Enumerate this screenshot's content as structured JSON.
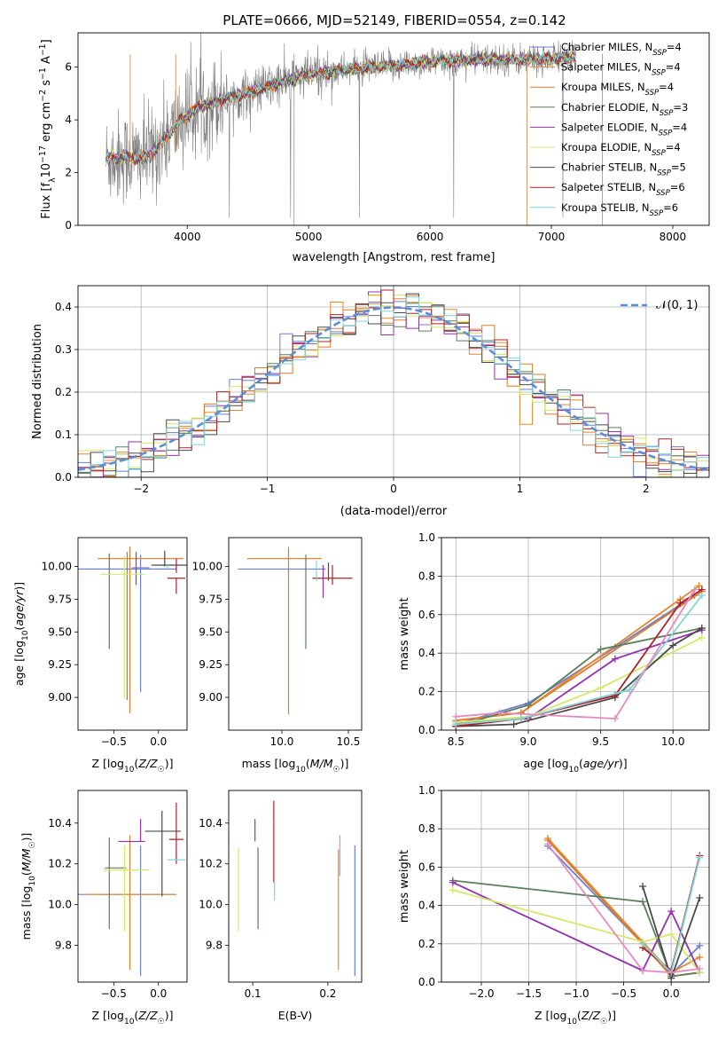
{
  "figure_title": "PLATE=0666, MJD=52149, FIBERID=0554, z=0.142",
  "models": [
    {
      "name": "Chabrier MILES",
      "nssp": "4",
      "color": "#6a7fd6"
    },
    {
      "name": "Salpeter MILES",
      "nssp": "4",
      "color": "#e8872c"
    },
    {
      "name": "Kroupa MILES",
      "nssp": "4",
      "color": "#e07b2a"
    },
    {
      "name": "Chabrier ELODIE",
      "nssp": "3",
      "color": "#5a7f5a"
    },
    {
      "name": "Salpeter ELODIE",
      "nssp": "4",
      "color": "#9531b0"
    },
    {
      "name": "Kroupa ELODIE",
      "nssp": "4",
      "color": "#d6e86a"
    },
    {
      "name": "Chabrier STELIB",
      "nssp": "5",
      "color": "#4a4a4a"
    },
    {
      "name": "Salpeter STELIB",
      "nssp": "6",
      "color": "#b0202a"
    },
    {
      "name": "Kroupa STELIB",
      "nssp": "6",
      "color": "#7fd6d6"
    }
  ],
  "legend_suffix": "SSP",
  "chart_data": [
    {
      "type": "line",
      "panel": "spectrum",
      "xlabel": "wavelength [Angstrom, rest frame]",
      "ylabel": "Flux [f_λ 10^-17 erg cm^-2 s^-1 A^-1]",
      "xlim": [
        3100,
        8300
      ],
      "ylim": [
        0,
        7.3
      ],
      "xticks": [
        4000,
        5000,
        6000,
        7000,
        8000
      ],
      "yticks": [
        0,
        2,
        4,
        6
      ],
      "data_color": "#808080",
      "model_continuum": {
        "x": [
          3330,
          3450,
          3600,
          3700,
          3800,
          3950,
          4100,
          4300,
          4500,
          4700,
          5000,
          5300,
          5600,
          6000,
          6500,
          7000,
          7200
        ],
        "y": [
          2.5,
          2.6,
          2.55,
          2.7,
          3.2,
          4.0,
          4.5,
          4.8,
          5.0,
          5.3,
          5.7,
          5.9,
          6.0,
          6.2,
          6.3,
          6.3,
          6.4
        ]
      },
      "legend_placement": "upper right"
    },
    {
      "type": "histogram",
      "panel": "residuals",
      "xlabel": "(data-model)/error",
      "ylabel": "Normed distribution",
      "xlim": [
        -2.5,
        2.5
      ],
      "ylim": [
        0,
        0.45
      ],
      "xticks": [
        -2,
        -1,
        0,
        1,
        2
      ],
      "yticks": [
        0.0,
        0.1,
        0.2,
        0.3,
        0.4
      ],
      "reference_curve": {
        "label": "𝒩(0, 1)",
        "mean": 0,
        "sigma": 1,
        "color": "#5b8ed6"
      },
      "bin_width": 0.1,
      "legend_placement": "upper right",
      "grid": true
    },
    {
      "type": "errorbar",
      "panel": "age_vs_Z",
      "xlabel": "Z [log10(Z/Z☉)]",
      "ylabel": "age  [log10(age/yr)]",
      "xlim": [
        -0.9,
        0.32
      ],
      "ylim": [
        8.75,
        10.22
      ],
      "xticks": [
        -0.5,
        0.0
      ],
      "yticks": [
        9.0,
        9.25,
        9.5,
        9.75,
        10.0
      ],
      "points": [
        {
          "x": -0.35,
          "xerr": 0.55,
          "y": 9.98,
          "yerr": [
            0.0,
            0.0
          ],
          "model": 0
        },
        {
          "x": -0.35,
          "xerr": 0.55,
          "y": 9.98,
          "yerr": [
            1.0,
            0.13
          ],
          "model": 0
        },
        {
          "x": -0.2,
          "xerr": 0.1,
          "y": 9.99,
          "yerr": [
            0.95,
            0.1
          ],
          "model": 0
        },
        {
          "x": -0.2,
          "xerr": 0.48,
          "y": 10.06,
          "yerr": [
            0.0,
            0.0
          ],
          "model": 1
        },
        {
          "x": -0.32,
          "xerr": 0.0,
          "y": 10.0,
          "yerr": [
            1.12,
            0.15
          ],
          "model": 2
        },
        {
          "x": -0.55,
          "xerr": 0.0,
          "y": 9.97,
          "yerr": [
            0.6,
            0.13
          ],
          "model": 3
        },
        {
          "x": -0.25,
          "xerr": 0.0,
          "y": 9.98,
          "yerr": [
            0.12,
            0.13
          ],
          "model": 4
        },
        {
          "x": -0.38,
          "xerr": 0.0,
          "y": 9.93,
          "yerr": [
            0.94,
            0.15
          ],
          "model": 5
        },
        {
          "x": -0.4,
          "xerr": 0.25,
          "y": 9.94,
          "yerr": [
            0.0,
            0.0
          ],
          "model": 5
        },
        {
          "x": 0.07,
          "xerr": 0.0,
          "y": 10.0,
          "yerr": [
            0.0,
            0.12
          ],
          "model": 6
        },
        {
          "x": 0.12,
          "xerr": 0.2,
          "y": 10.01,
          "yerr": [
            0.0,
            0.0
          ],
          "model": 6
        },
        {
          "x": 0.2,
          "xerr": 0.1,
          "y": 9.91,
          "yerr": [
            0.12,
            0.0
          ],
          "model": 7
        },
        {
          "x": 0.2,
          "xerr": 0.0,
          "y": 10.0,
          "yerr": [
            0.05,
            0.06
          ],
          "model": 7
        },
        {
          "x": 0.1,
          "xerr": 0.0,
          "y": 9.99,
          "yerr": [
            0.02,
            0.02
          ],
          "model": 8
        }
      ]
    },
    {
      "type": "errorbar",
      "panel": "age_vs_mass",
      "xlabel": "mass [log10(M/M☉)]",
      "ylabel": "",
      "xlim": [
        9.6,
        10.6
      ],
      "ylim": [
        8.75,
        10.22
      ],
      "xticks": [
        10.0,
        10.5
      ],
      "yticks": [
        9.0,
        9.25,
        9.5,
        9.75,
        10.0
      ],
      "points": [
        {
          "x": 10.0,
          "xerr": 0.33,
          "y": 9.98,
          "yerr": [
            0.0,
            0.0
          ],
          "model": 0
        },
        {
          "x": 10.02,
          "xerr": 0.28,
          "y": 10.06,
          "yerr": [
            0.0,
            0.0
          ],
          "model": 1
        },
        {
          "x": 10.05,
          "xerr": 0.0,
          "y": 9.99,
          "yerr": [
            1.12,
            0.16
          ],
          "model": 2
        },
        {
          "x": 10.18,
          "xerr": 0.0,
          "y": 9.97,
          "yerr": [
            0.6,
            0.12
          ],
          "model": 3
        },
        {
          "x": 10.31,
          "xerr": 0.0,
          "y": 9.96,
          "yerr": [
            0.2,
            0.05
          ],
          "model": 4
        },
        {
          "x": 10.23,
          "xerr": 0.0,
          "y": 9.94,
          "yerr": [
            0.0,
            0.0
          ],
          "model": 5
        },
        {
          "x": 10.35,
          "xerr": 0.0,
          "y": 9.99,
          "yerr": [
            0.1,
            0.04
          ],
          "model": 6
        },
        {
          "x": 10.38,
          "xerr": 0.15,
          "y": 9.91,
          "yerr": [
            0.05,
            0.1
          ],
          "model": 7
        },
        {
          "x": 10.26,
          "xerr": 0.0,
          "y": 9.99,
          "yerr": [
            0.1,
            0.05
          ],
          "model": 8
        }
      ]
    },
    {
      "type": "line",
      "panel": "massweight_vs_age",
      "xlabel": "age  [log10(age/yr)]",
      "ylabel": "mass weight",
      "xlim": [
        8.4,
        10.25
      ],
      "ylim": [
        0.0,
        1.0
      ],
      "xticks": [
        8.5,
        9.0,
        9.5,
        10.0
      ],
      "yticks": [
        0.0,
        0.2,
        0.4,
        0.6,
        0.8,
        1.0
      ],
      "grid": true,
      "series": [
        {
          "model": 0,
          "x": [
            8.5,
            9.0,
            9.6,
            10.15
          ],
          "y": [
            0.03,
            0.14,
            0.43,
            0.7
          ]
        },
        {
          "model": 1,
          "x": [
            8.5,
            8.95,
            10.05,
            10.18
          ],
          "y": [
            0.05,
            0.09,
            0.68,
            0.75
          ]
        },
        {
          "model": 2,
          "x": [
            8.5,
            8.95,
            10.2
          ],
          "y": [
            0.05,
            0.09,
            0.72
          ]
        },
        {
          "model": 3,
          "x": [
            8.5,
            9.0,
            9.5,
            10.2
          ],
          "y": [
            0.02,
            0.13,
            0.42,
            0.53
          ]
        },
        {
          "model": 4,
          "x": [
            8.5,
            9.0,
            9.6,
            10.2
          ],
          "y": [
            0.04,
            0.06,
            0.37,
            0.52
          ]
        },
        {
          "model": 5,
          "x": [
            8.5,
            9.0,
            9.5,
            10.2
          ],
          "y": [
            0.04,
            0.07,
            0.22,
            0.48
          ]
        },
        {
          "model": 6,
          "x": [
            8.5,
            8.9,
            9.6,
            10.0,
            10.2
          ],
          "y": [
            0.02,
            0.03,
            0.17,
            0.44,
            0.53
          ]
        },
        {
          "model": 7,
          "x": [
            8.5,
            8.95,
            9.6,
            10.05,
            10.2
          ],
          "y": [
            0.02,
            0.06,
            0.18,
            0.66,
            0.73
          ]
        },
        {
          "model": 8,
          "x": [
            8.5,
            8.95,
            9.7,
            10.2
          ],
          "y": [
            0.03,
            0.06,
            0.21,
            0.7
          ]
        },
        {
          "model": -1,
          "color": "#e38bc0",
          "x": [
            8.5,
            8.8,
            9.6,
            10.15
          ],
          "y": [
            0.07,
            0.09,
            0.06,
            0.73
          ]
        }
      ]
    },
    {
      "type": "errorbar",
      "panel": "mass_vs_Z",
      "xlabel": "Z [log10(Z/Z☉)]",
      "ylabel": "mass [log10(M/M☉)]",
      "xlim": [
        -0.9,
        0.32
      ],
      "ylim": [
        9.62,
        10.56
      ],
      "xticks": [
        -0.5,
        0.0
      ],
      "yticks": [
        9.8,
        10.0,
        10.2,
        10.4
      ],
      "points": [
        {
          "x": -0.35,
          "xerr": 0.55,
          "y": 10.05,
          "yerr": [
            0.0,
            0.0
          ],
          "model": 0
        },
        {
          "x": -0.2,
          "xerr": 0.0,
          "y": 10.05,
          "yerr": [
            0.4,
            0.24
          ],
          "model": 0
        },
        {
          "x": -0.3,
          "xerr": 0.5,
          "y": 10.05,
          "yerr": [
            0.0,
            0.0
          ],
          "model": 1
        },
        {
          "x": -0.32,
          "xerr": 0.0,
          "y": 10.05,
          "yerr": [
            0.37,
            0.29
          ],
          "model": 2
        },
        {
          "x": -0.55,
          "xerr": 0.0,
          "y": 10.18,
          "yerr": [
            0.3,
            0.15
          ],
          "model": 3
        },
        {
          "x": -0.48,
          "xerr": 0.12,
          "y": 10.18,
          "yerr": [
            0.0,
            0.0
          ],
          "model": 3
        },
        {
          "x": -0.3,
          "xerr": 0.15,
          "y": 10.31,
          "yerr": [
            0.0,
            0.0
          ],
          "model": 4
        },
        {
          "x": -0.2,
          "xerr": 0.0,
          "y": 10.31,
          "yerr": [
            0.0,
            0.11
          ],
          "model": 4
        },
        {
          "x": -0.38,
          "xerr": 0.0,
          "y": 10.17,
          "yerr": [
            0.3,
            0.12
          ],
          "model": 5
        },
        {
          "x": -0.35,
          "xerr": 0.25,
          "y": 10.17,
          "yerr": [
            0.0,
            0.0
          ],
          "model": 5
        },
        {
          "x": 0.04,
          "xerr": 0.0,
          "y": 10.36,
          "yerr": [
            0.32,
            0.1
          ],
          "model": 6
        },
        {
          "x": 0.05,
          "xerr": 0.2,
          "y": 10.36,
          "yerr": [
            0.0,
            0.0
          ],
          "model": 6
        },
        {
          "x": 0.2,
          "xerr": 0.08,
          "y": 10.32,
          "yerr": [
            0.12,
            0.18
          ],
          "model": 7
        },
        {
          "x": 0.2,
          "xerr": 0.1,
          "y": 10.22,
          "yerr": [
            0.0,
            0.0
          ],
          "model": 8
        }
      ]
    },
    {
      "type": "errorbar",
      "panel": "mass_vs_EBV",
      "xlabel": "E(B-V)",
      "ylabel": "",
      "xlim": [
        0.068,
        0.245
      ],
      "ylim": [
        9.62,
        10.56
      ],
      "xticks": [
        0.1,
        0.2
      ],
      "yticks": [
        9.8,
        10.0,
        10.2,
        10.4
      ],
      "points": [
        {
          "x": 0.236,
          "xerr": 0.0,
          "y": 10.05,
          "yerr": [
            0.4,
            0.24
          ],
          "model": 0
        },
        {
          "x": 0.214,
          "xerr": 0.0,
          "y": 10.05,
          "yerr": [
            0.37,
            0.22
          ],
          "model": 1
        },
        {
          "x": 0.107,
          "xerr": 0.0,
          "y": 10.18,
          "yerr": [
            0.3,
            0.1
          ],
          "model": 3
        },
        {
          "x": 0.103,
          "xerr": 0.0,
          "y": 10.31,
          "yerr": [
            0.0,
            0.11
          ],
          "model": 4
        },
        {
          "x": 0.081,
          "xerr": 0.0,
          "y": 10.05,
          "yerr": [
            0.18,
            0.23
          ],
          "model": 5
        },
        {
          "x": 0.128,
          "xerr": 0.0,
          "y": 10.36,
          "yerr": [
            0.25,
            0.15
          ],
          "model": 7
        },
        {
          "x": 0.129,
          "xerr": 0.0,
          "y": 10.22,
          "yerr": [
            0.2,
            0.2
          ],
          "model": 8
        },
        {
          "x": 0.216,
          "xerr": 0.0,
          "y": 10.14,
          "yerr": [
            0.0,
            0.2
          ],
          "model": -1,
          "color": "#e38bc0"
        }
      ]
    },
    {
      "type": "line",
      "panel": "massweight_vs_Z",
      "xlabel": "Z [log10(Z/Z☉)]",
      "ylabel": "mass weight",
      "xlim": [
        -2.42,
        0.4
      ],
      "ylim": [
        0.0,
        1.0
      ],
      "xticks": [
        -2.0,
        -1.5,
        -1.0,
        -0.5,
        0.0
      ],
      "yticks": [
        0.0,
        0.2,
        0.4,
        0.6,
        0.8,
        1.0
      ],
      "grid": true,
      "series": [
        {
          "model": 0,
          "x": [
            -1.3,
            -0.3,
            0.0,
            0.3
          ],
          "y": [
            0.71,
            0.2,
            0.04,
            0.19
          ]
        },
        {
          "model": 1,
          "x": [
            -1.3,
            -0.3,
            0.0,
            0.3
          ],
          "y": [
            0.75,
            0.21,
            0.05,
            0.13
          ]
        },
        {
          "model": 2,
          "x": [
            -1.3,
            -0.3,
            0.0,
            0.3
          ],
          "y": [
            0.74,
            0.2,
            0.03,
            0.05
          ]
        },
        {
          "model": 3,
          "x": [
            -2.3,
            -0.3,
            0.0,
            0.3
          ],
          "y": [
            0.53,
            0.42,
            0.03,
            0.05
          ]
        },
        {
          "model": 4,
          "x": [
            -2.3,
            -0.3,
            0.0,
            0.3
          ],
          "y": [
            0.52,
            0.06,
            0.37,
            0.05
          ]
        },
        {
          "model": 5,
          "x": [
            -2.3,
            -0.3,
            0.0,
            0.3
          ],
          "y": [
            0.48,
            0.21,
            0.25,
            0.05
          ]
        },
        {
          "model": 6,
          "x": [
            -0.3,
            0.0,
            0.3
          ],
          "y": [
            0.5,
            0.02,
            0.44
          ]
        },
        {
          "model": 7,
          "x": [
            -0.3,
            0.0,
            0.3
          ],
          "y": [
            0.18,
            0.06,
            0.66
          ]
        },
        {
          "model": 8,
          "x": [
            -0.3,
            0.0,
            0.3
          ],
          "y": [
            0.2,
            0.05,
            0.65
          ]
        },
        {
          "model": -1,
          "color": "#e38bc0",
          "x": [
            -1.3,
            -0.3,
            0.0,
            0.3
          ],
          "y": [
            0.72,
            0.06,
            0.05,
            0.07
          ]
        }
      ]
    }
  ]
}
